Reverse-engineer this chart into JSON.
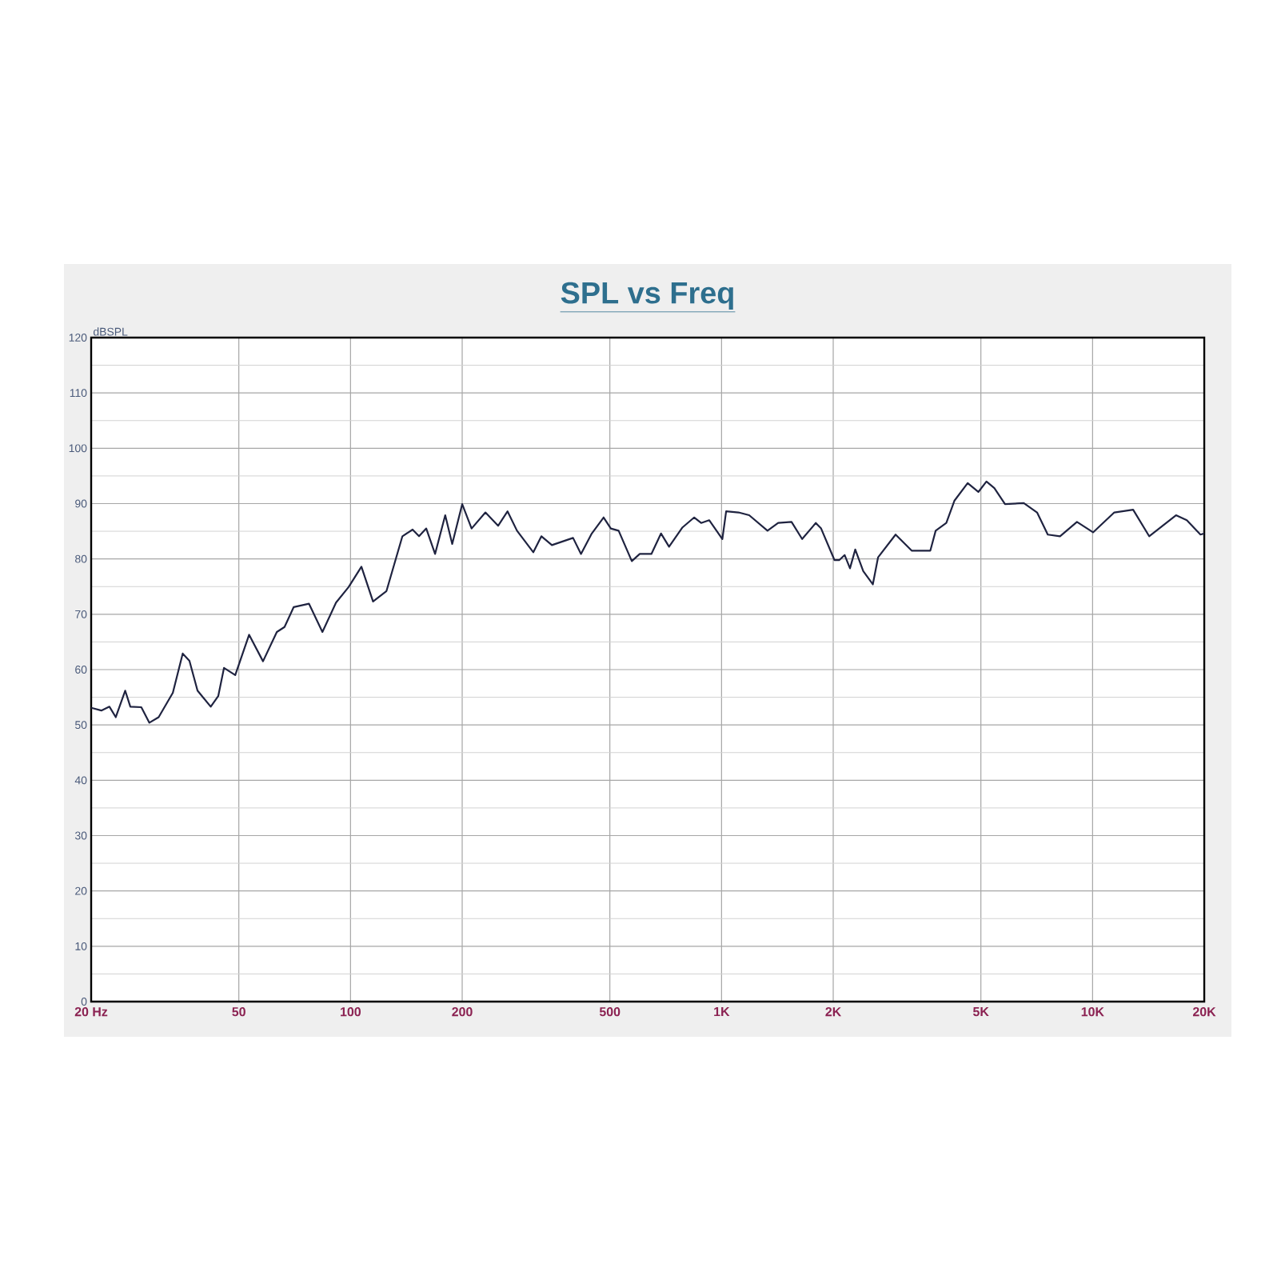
{
  "chart_data": {
    "type": "line",
    "title": "SPL vs Freq",
    "ylabel": "dBSPL",
    "log": "x",
    "grid": true,
    "marker": "none",
    "line_style": "solid",
    "xlim": [
      20,
      20000
    ],
    "ylim": [
      0,
      120
    ],
    "xticks": [
      {
        "value": 20,
        "label": "20  Hz"
      },
      50,
      100,
      200,
      500,
      {
        "value": 1000,
        "label": "1K"
      },
      {
        "value": 2000,
        "label": "2K"
      },
      {
        "value": 5000,
        "label": "5K"
      },
      {
        "value": 10000,
        "label": "10K"
      },
      {
        "value": 20000,
        "label": "20K"
      }
    ],
    "yticks": [
      0,
      10,
      20,
      30,
      40,
      50,
      60,
      70,
      80,
      90,
      100,
      110,
      120
    ],
    "series": [
      {
        "color": "#1f2340",
        "x": [
          20,
          21.3,
          22.4,
          23.3,
          24.7,
          25.5,
          27.3,
          28.7,
          30.4,
          33.2,
          35.3,
          36.8,
          38.7,
          42,
          44,
          45.6,
          48.9,
          53.3,
          58.1,
          63.3,
          66.4,
          70.3,
          77.3,
          84,
          91.4,
          98.8,
          107,
          115,
          125,
          138,
          147,
          153,
          160,
          169,
          180,
          188,
          200,
          212,
          231,
          250,
          265,
          281,
          311,
          327,
          349,
          398,
          418,
          447,
          481,
          503,
          528,
          573,
          602,
          647,
          687,
          722,
          785,
          844,
          881,
          926,
          1005,
          1029,
          1111,
          1187,
          1330,
          1421,
          1544,
          1649,
          1795,
          1855,
          2015,
          2078,
          2147,
          2219,
          2293,
          2409,
          2557,
          2642,
          2945,
          3254,
          3654,
          3777,
          4035,
          4241,
          4606,
          4922,
          5175,
          5436,
          5808,
          6526,
          7086,
          7573,
          8172,
          9076,
          10030,
          11443,
          12862,
          14209,
          16782,
          17946,
          19537,
          20000
        ],
        "values": [
          53.1,
          52.6,
          53.3,
          51.4,
          56.2,
          53.3,
          53.2,
          50.4,
          51.4,
          55.8,
          62.9,
          61.6,
          56.2,
          53.3,
          55.2,
          60.3,
          59,
          66.3,
          61.5,
          66.8,
          67.7,
          71.3,
          71.9,
          66.8,
          72.1,
          74.9,
          78.6,
          72.3,
          74.2,
          84.1,
          85.3,
          84.1,
          85.5,
          80.9,
          87.9,
          82.7,
          89.9,
          85.5,
          88.4,
          86,
          88.6,
          85.1,
          81.2,
          84.1,
          82.5,
          83.8,
          80.9,
          84.6,
          87.5,
          85.5,
          85.1,
          79.6,
          80.9,
          80.9,
          84.6,
          82.2,
          85.7,
          87.5,
          86.5,
          87,
          83.6,
          88.6,
          88.4,
          87.9,
          85.1,
          86.5,
          86.7,
          83.6,
          86.5,
          85.5,
          79.8,
          79.8,
          80.7,
          78.3,
          81.7,
          77.8,
          75.4,
          80.3,
          84.4,
          81.5,
          81.5,
          85.1,
          86.5,
          90.5,
          93.7,
          92.1,
          94,
          92.8,
          89.9,
          90.1,
          88.4,
          84.4,
          84.1,
          86.7,
          84.8,
          88.4,
          88.9,
          84.1,
          87.9,
          87,
          84.4,
          84.6
        ]
      }
    ]
  }
}
